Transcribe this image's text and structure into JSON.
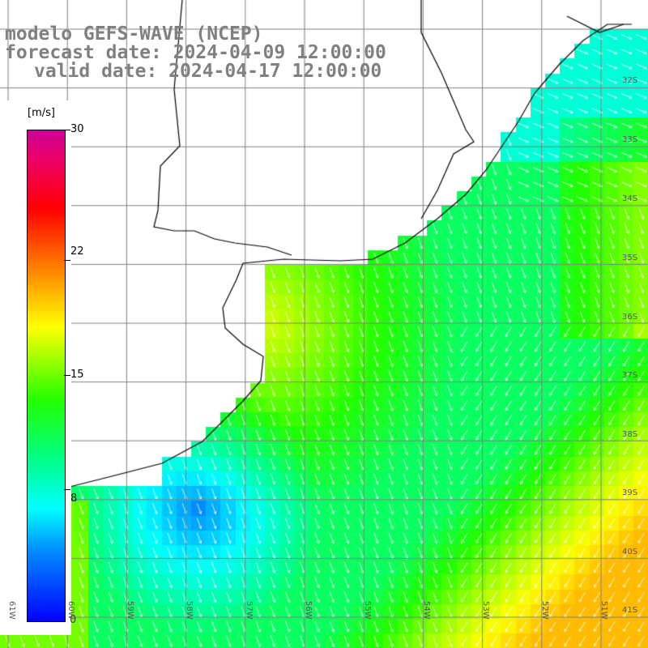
{
  "title": {
    "line1": "modelo GEFS-WAVE (NCEP)",
    "line2": "forecast date: 2024-04-09 12:00:00",
    "line3": "valid date: 2024-04-17 12:00:00"
  },
  "legend": {
    "unit": "[m/s]",
    "ticks": [
      "30",
      "22",
      "15",
      "8",
      "0"
    ],
    "tick_values": [
      30,
      22,
      15,
      8,
      0
    ],
    "min": 0,
    "max": 30
  },
  "latitude_labels": [
    "32S",
    "33S",
    "34S",
    "35S",
    "36S",
    "37S",
    "38S",
    "39S",
    "40S",
    "41S"
  ],
  "longitude_labels": [
    "61W",
    "60W",
    "59W",
    "58W",
    "57W",
    "56W",
    "55W",
    "54W",
    "53W",
    "52W",
    "51W"
  ],
  "colors": {
    "land": "#ffffff",
    "coastline": "#000000",
    "grid": "#808080",
    "arrows": "#ffffff",
    "title_text": "#808080"
  }
}
